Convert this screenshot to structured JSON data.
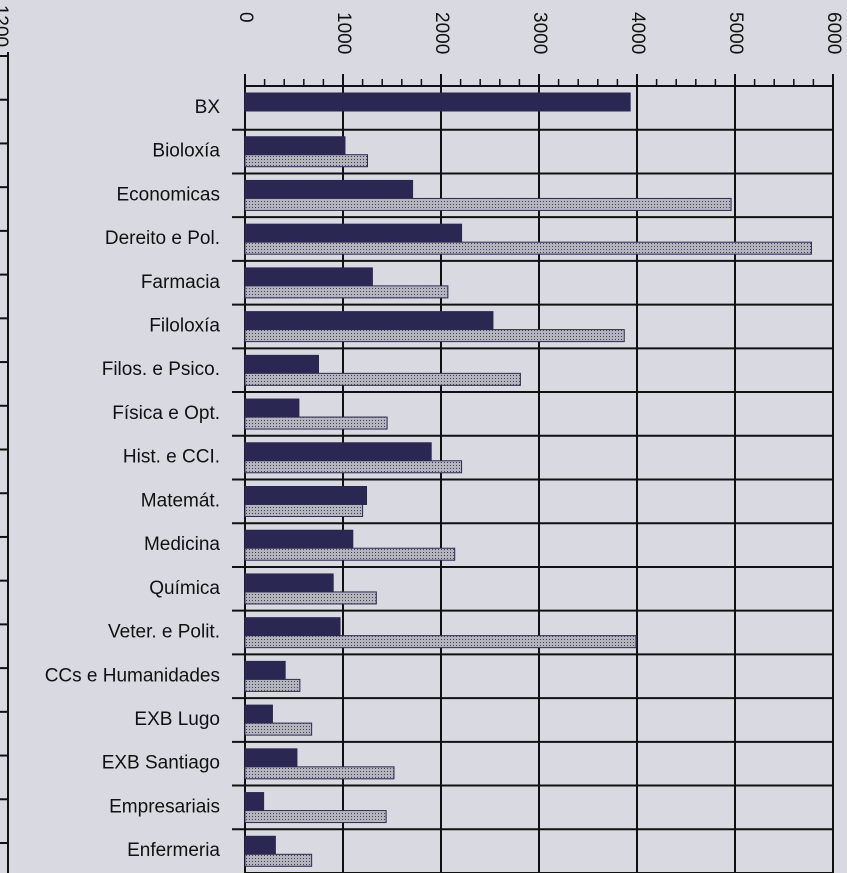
{
  "left_axis_fragment": "1200",
  "chart_data": {
    "type": "barh",
    "categories": [
      "BX",
      "Bioloxía",
      "Economicas",
      "Dereito e Pol.",
      "Farmacia",
      "Filoloxía",
      "Filos. e Psico.",
      "Física e Opt.",
      "Hist. e CCI.",
      "Matemát.",
      "Medicina",
      "Química",
      "Veter. e Polit.",
      "CCs e Humanidades",
      "EXB Lugo",
      "EXB Santiago",
      "Empresariais",
      "Enfermeria"
    ],
    "series": [
      {
        "color": "#2a2852",
        "values": [
          3930,
          1020,
          1710,
          2210,
          1300,
          2530,
          750,
          550,
          1900,
          1240,
          1100,
          900,
          970,
          410,
          280,
          530,
          190,
          310
        ]
      },
      {
        "color": "#b4b4c0",
        "values": [
          null,
          1250,
          4960,
          5780,
          2070,
          3870,
          2810,
          1450,
          2210,
          1200,
          2140,
          1340,
          3990,
          560,
          680,
          1520,
          1440,
          680
        ]
      }
    ],
    "xlim": [
      0,
      6000
    ],
    "xticks": [
      0,
      1000,
      2000,
      3000,
      4000,
      5000,
      6000
    ],
    "grid": true
  }
}
